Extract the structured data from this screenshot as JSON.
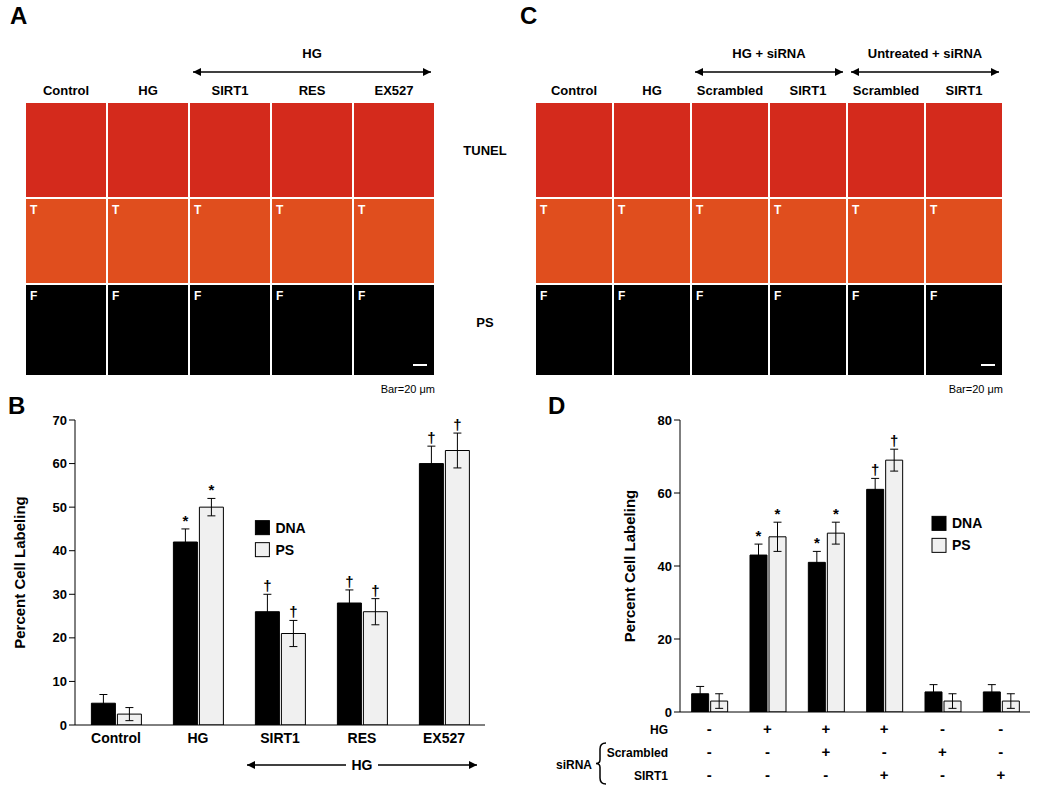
{
  "image_panels": [
    {
      "label": "A",
      "columns": [
        "Control",
        "HG",
        "SIRT1",
        "RES",
        "EX527"
      ],
      "groups": [
        {
          "label": "HG",
          "from": 2,
          "to": 4
        }
      ],
      "row_tags": [
        null,
        "T",
        "F"
      ],
      "scale_bar": "Bar=20 μm"
    },
    {
      "label": "C",
      "columns": [
        "Control",
        "HG",
        "Scrambled",
        "SIRT1",
        "Scrambled",
        "SIRT1"
      ],
      "groups": [
        {
          "label": "HG + siRNA",
          "from": 2,
          "to": 3
        },
        {
          "label": "Untreated + siRNA",
          "from": 4,
          "to": 5
        }
      ],
      "row_tags": [
        null,
        "T",
        "F"
      ],
      "scale_bar": "Bar=20 μm"
    }
  ],
  "row_labels": [
    "TUNEL",
    "PS"
  ],
  "chart_data": [
    {
      "panel": "B",
      "type": "bar",
      "y_label": "Percent Cell Labeling",
      "categories": [
        "Control",
        "HG",
        "SIRT1",
        "RES",
        "EX527"
      ],
      "series": [
        {
          "name": "DNA",
          "color": "#000000",
          "values": [
            5,
            42,
            26,
            28,
            60
          ],
          "errors": [
            2,
            3,
            4,
            3,
            4
          ],
          "marks": [
            null,
            "*",
            "†",
            "†",
            "†"
          ]
        },
        {
          "name": "PS",
          "color": "#f0f0f0",
          "values": [
            2.5,
            50,
            21,
            26,
            63
          ],
          "errors": [
            1.5,
            2,
            3,
            3,
            4
          ],
          "marks": [
            null,
            "*",
            "†",
            "†",
            "†"
          ]
        }
      ],
      "ylim": [
        0,
        70
      ],
      "yticks": [
        0,
        10,
        20,
        30,
        40,
        50,
        60,
        70
      ],
      "legend": "upper center",
      "group_bracket": {
        "label": "HG",
        "from": 2,
        "to": 4
      }
    },
    {
      "panel": "D",
      "type": "bar",
      "y_label": "Percent Cell Labeling",
      "categories": [
        null,
        null,
        null,
        null,
        null,
        null
      ],
      "series": [
        {
          "name": "DNA",
          "color": "#000000",
          "values": [
            5,
            43,
            41,
            61,
            5.5,
            5.5
          ],
          "errors": [
            2,
            3,
            3,
            3,
            2,
            2
          ],
          "marks": [
            null,
            "*",
            "*",
            "†",
            null,
            null
          ]
        },
        {
          "name": "PS",
          "color": "#f0f0f0",
          "values": [
            3,
            48,
            49,
            69,
            3,
            3
          ],
          "errors": [
            2,
            4,
            3,
            3,
            2,
            2
          ],
          "marks": [
            null,
            "*",
            "*",
            "†",
            null,
            null
          ]
        }
      ],
      "ylim": [
        0,
        80
      ],
      "yticks": [
        0,
        20,
        40,
        60,
        80
      ],
      "legend": "upper right",
      "condition_rows": [
        {
          "label": "HG",
          "values": [
            "-",
            "+",
            "+",
            "+",
            "-",
            "-"
          ]
        },
        {
          "label": "Scrambled",
          "values": [
            "-",
            "-",
            "+",
            "-",
            "+",
            "-"
          ]
        },
        {
          "label": "SIRT1",
          "values": [
            "-",
            "-",
            "-",
            "+",
            "-",
            "+"
          ]
        }
      ],
      "condition_group": {
        "label": "siRNA",
        "from": 1,
        "to": 2
      }
    }
  ]
}
